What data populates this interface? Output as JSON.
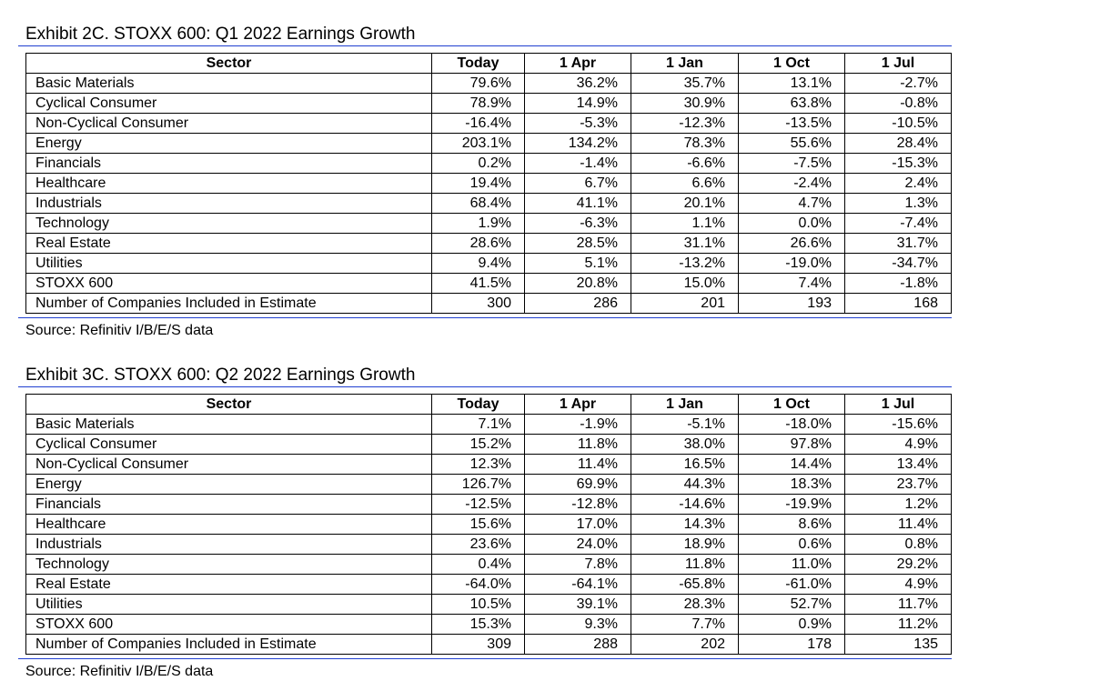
{
  "exhibits": [
    {
      "title": "Exhibit 2C.  STOXX 600: Q1 2022 Earnings Growth",
      "columns": [
        "Sector",
        "Today",
        "1 Apr",
        "1 Jan",
        "1 Oct",
        "1 Jul"
      ],
      "rows": [
        [
          "Basic Materials",
          "79.6%",
          "36.2%",
          "35.7%",
          "13.1%",
          "-2.7%"
        ],
        [
          "Cyclical Consumer",
          "78.9%",
          "14.9%",
          "30.9%",
          "63.8%",
          "-0.8%"
        ],
        [
          "Non-Cyclical Consumer",
          "-16.4%",
          "-5.3%",
          "-12.3%",
          "-13.5%",
          "-10.5%"
        ],
        [
          "Energy",
          "203.1%",
          "134.2%",
          "78.3%",
          "55.6%",
          "28.4%"
        ],
        [
          "Financials",
          "0.2%",
          "-1.4%",
          "-6.6%",
          "-7.5%",
          "-15.3%"
        ],
        [
          "Healthcare",
          "19.4%",
          "6.7%",
          "6.6%",
          "-2.4%",
          "2.4%"
        ],
        [
          "Industrials",
          "68.4%",
          "41.1%",
          "20.1%",
          "4.7%",
          "1.3%"
        ],
        [
          "Technology",
          "1.9%",
          "-6.3%",
          "1.1%",
          "0.0%",
          "-7.4%"
        ],
        [
          "Real Estate",
          "28.6%",
          "28.5%",
          "31.1%",
          "26.6%",
          "31.7%"
        ],
        [
          "Utilities",
          "9.4%",
          "5.1%",
          "-13.2%",
          "-19.0%",
          "-34.7%"
        ],
        [
          "STOXX 600",
          "41.5%",
          "20.8%",
          "15.0%",
          "7.4%",
          "-1.8%"
        ],
        [
          "Number of Companies Included in Estimate",
          "300",
          "286",
          "201",
          "193",
          "168"
        ]
      ],
      "source": "Source: Refinitiv I/B/E/S data"
    },
    {
      "title": "Exhibit 3C.  STOXX 600: Q2 2022 Earnings Growth",
      "columns": [
        "Sector",
        "Today",
        "1 Apr",
        "1 Jan",
        "1 Oct",
        "1 Jul"
      ],
      "rows": [
        [
          "Basic Materials",
          "7.1%",
          "-1.9%",
          "-5.1%",
          "-18.0%",
          "-15.6%"
        ],
        [
          "Cyclical Consumer",
          "15.2%",
          "11.8%",
          "38.0%",
          "97.8%",
          "4.9%"
        ],
        [
          "Non-Cyclical Consumer",
          "12.3%",
          "11.4%",
          "16.5%",
          "14.4%",
          "13.4%"
        ],
        [
          "Energy",
          "126.7%",
          "69.9%",
          "44.3%",
          "18.3%",
          "23.7%"
        ],
        [
          "Financials",
          "-12.5%",
          "-12.8%",
          "-14.6%",
          "-19.9%",
          "1.2%"
        ],
        [
          "Healthcare",
          "15.6%",
          "17.0%",
          "14.3%",
          "8.6%",
          "11.4%"
        ],
        [
          "Industrials",
          "23.6%",
          "24.0%",
          "18.9%",
          "0.6%",
          "0.8%"
        ],
        [
          "Technology",
          "0.4%",
          "7.8%",
          "11.8%",
          "11.0%",
          "29.2%"
        ],
        [
          "Real Estate",
          "-64.0%",
          "-64.1%",
          "-65.8%",
          "-61.0%",
          "4.9%"
        ],
        [
          "Utilities",
          "10.5%",
          "39.1%",
          "28.3%",
          "52.7%",
          "11.7%"
        ],
        [
          "STOXX 600",
          "15.3%",
          "9.3%",
          "7.7%",
          "0.9%",
          "11.2%"
        ],
        [
          "Number of Companies Included in Estimate",
          "309",
          "288",
          "202",
          "178",
          "135"
        ]
      ],
      "source": "Source: Refinitiv I/B/E/S data"
    }
  ]
}
